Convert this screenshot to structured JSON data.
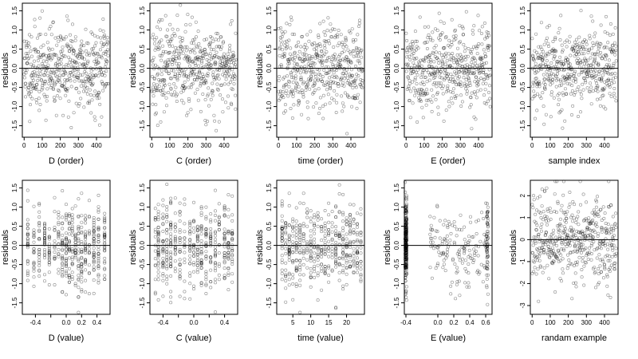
{
  "figure": {
    "description": "Residual diagnostic scatter plots in a 2x5 grid"
  },
  "chart_data": [
    {
      "type": "scatter",
      "xlabel": "D (order)",
      "ylabel": "residuals",
      "xlim": [
        -10,
        475
      ],
      "ylim": [
        -1.8,
        1.7
      ],
      "xticks": [
        0,
        100,
        200,
        300,
        400
      ],
      "xtick_labels": [
        "0",
        "100",
        "200",
        "300",
        "400"
      ],
      "yticks": [
        -1.5,
        -1.0,
        -0.5,
        0.0,
        0.5,
        1.0,
        1.5
      ],
      "ytick_labels": [
        "-1.5",
        "-1.0",
        "-0.5",
        "0.0",
        "0.5",
        "1.0",
        "1.5"
      ],
      "hline": 0,
      "pattern": {
        "kind": "uniform",
        "n": 480,
        "seed": 11,
        "sd": 0.55,
        "xmin": 0,
        "xmax": 465
      }
    },
    {
      "type": "scatter",
      "xlabel": "C (order)",
      "ylabel": "residuals",
      "xlim": [
        -10,
        475
      ],
      "ylim": [
        -1.8,
        1.7
      ],
      "xticks": [
        0,
        100,
        200,
        300,
        400
      ],
      "xtick_labels": [
        "0",
        "100",
        "200",
        "300",
        "400"
      ],
      "yticks": [
        -1.5,
        -1.0,
        -0.5,
        0.0,
        0.5,
        1.0,
        1.5
      ],
      "ytick_labels": [
        "-1.5",
        "-1.0",
        "-0.5",
        "0.0",
        "0.5",
        "1.0",
        "1.5"
      ],
      "hline": 0,
      "pattern": {
        "kind": "uniform",
        "n": 480,
        "seed": 23,
        "sd": 0.55,
        "xmin": 0,
        "xmax": 465
      }
    },
    {
      "type": "scatter",
      "xlabel": "time (order)",
      "ylabel": "residuals",
      "xlim": [
        -10,
        475
      ],
      "ylim": [
        -1.8,
        1.7
      ],
      "xticks": [
        0,
        100,
        200,
        300,
        400
      ],
      "xtick_labels": [
        "0",
        "100",
        "200",
        "300",
        "400"
      ],
      "yticks": [
        -1.5,
        -1.0,
        -0.5,
        0.0,
        0.5,
        1.0,
        1.5
      ],
      "ytick_labels": [
        "-1.5",
        "-1.0",
        "-0.5",
        "0.0",
        "0.5",
        "1.0",
        "1.5"
      ],
      "hline": 0,
      "pattern": {
        "kind": "uniform",
        "n": 480,
        "seed": 37,
        "sd": 0.55,
        "xmin": 0,
        "xmax": 465
      }
    },
    {
      "type": "scatter",
      "xlabel": "E (order)",
      "ylabel": "residuals",
      "xlim": [
        -10,
        475
      ],
      "ylim": [
        -1.8,
        1.7
      ],
      "xticks": [
        0,
        100,
        200,
        300,
        400
      ],
      "xtick_labels": [
        "0",
        "100",
        "200",
        "300",
        "400"
      ],
      "yticks": [
        -1.5,
        -1.0,
        -0.5,
        0.0,
        0.5,
        1.0,
        1.5
      ],
      "ytick_labels": [
        "-1.5",
        "-1.0",
        "-0.5",
        "0.0",
        "0.5",
        "1.0",
        "1.5"
      ],
      "hline": 0,
      "pattern": {
        "kind": "uniform",
        "n": 480,
        "seed": 41,
        "sd": 0.55,
        "xmin": 0,
        "xmax": 465
      }
    },
    {
      "type": "scatter",
      "xlabel": "sample index",
      "ylabel": "residuals",
      "xlim": [
        -10,
        475
      ],
      "ylim": [
        -1.8,
        1.7
      ],
      "xticks": [
        0,
        100,
        200,
        300,
        400
      ],
      "xtick_labels": [
        "0",
        "100",
        "200",
        "300",
        "400"
      ],
      "yticks": [
        -1.5,
        -1.0,
        -0.5,
        0.0,
        0.5,
        1.0,
        1.5
      ],
      "ytick_labels": [
        "-1.5",
        "-1.0",
        "-0.5",
        "0.0",
        "0.5",
        "1.0",
        "1.5"
      ],
      "hline": 0,
      "pattern": {
        "kind": "uniform",
        "n": 480,
        "seed": 53,
        "sd": 0.55,
        "xmin": 0,
        "xmax": 465
      }
    },
    {
      "type": "scatter",
      "xlabel": "D (value)",
      "ylabel": "residuals",
      "xlim": [
        -0.57,
        0.57
      ],
      "ylim": [
        -1.8,
        1.7
      ],
      "xticks": [
        -0.4,
        -0.2,
        0.0,
        0.2,
        0.4
      ],
      "xtick_labels": [
        "-0.4",
        "",
        "0.0",
        "0.2",
        "0.4"
      ],
      "yticks": [
        -1.5,
        -1.0,
        -0.5,
        0.0,
        0.5,
        1.0,
        1.5
      ],
      "ytick_labels": [
        "-1.5",
        "-1.0",
        "-0.5",
        "0.0",
        "0.5",
        "1.0",
        "1.5"
      ],
      "hline": 0,
      "pattern": {
        "kind": "columns",
        "n": 480,
        "seed": 61,
        "sd": 0.55,
        "columns": [
          -0.5,
          -0.42,
          -0.35,
          -0.28,
          -0.22,
          -0.15,
          -0.1,
          -0.05,
          0.0,
          0.04,
          0.08,
          0.12,
          0.16,
          0.2,
          0.25,
          0.3,
          0.36,
          0.42,
          0.5
        ]
      }
    },
    {
      "type": "scatter",
      "xlabel": "C (value)",
      "ylabel": "residuals",
      "xlim": [
        -0.57,
        0.57
      ],
      "ylim": [
        -1.8,
        1.7
      ],
      "xticks": [
        -0.4,
        -0.2,
        0.0,
        0.2,
        0.4
      ],
      "xtick_labels": [
        "-0.4",
        "",
        "0.0",
        "",
        "0.4"
      ],
      "yticks": [
        -1.5,
        -1.0,
        -0.5,
        0.0,
        0.5,
        1.0,
        1.5
      ],
      "ytick_labels": [
        "-1.5",
        "-1.0",
        "-0.5",
        "0.0",
        "0.5",
        "1.0",
        "1.5"
      ],
      "hline": 0,
      "pattern": {
        "kind": "columns",
        "n": 480,
        "seed": 71,
        "sd": 0.55,
        "columns": [
          -0.5,
          -0.46,
          -0.4,
          -0.35,
          -0.3,
          -0.24,
          -0.18,
          -0.12,
          -0.05,
          0.0,
          0.05,
          0.1,
          0.16,
          0.22,
          0.28,
          0.33,
          0.4,
          0.45,
          0.5
        ]
      }
    },
    {
      "type": "scatter",
      "xlabel": "time (value)",
      "ylabel": "residuals",
      "xlim": [
        0.5,
        25
      ],
      "ylim": [
        -1.8,
        1.7
      ],
      "xticks": [
        5,
        10,
        15,
        20
      ],
      "xtick_labels": [
        "5",
        "10",
        "15",
        "20"
      ],
      "yticks": [
        -1.5,
        -1.0,
        -0.5,
        0.0,
        0.5,
        1.0,
        1.5
      ],
      "ytick_labels": [
        "-1.5",
        "-1.0",
        "-0.5",
        "0.0",
        "0.5",
        "1.0",
        "1.5"
      ],
      "hline": 0,
      "pattern": {
        "kind": "columns",
        "n": 480,
        "seed": 83,
        "sd": 0.55,
        "columns": [
          2,
          3,
          4,
          5,
          6,
          7,
          8,
          9,
          10,
          11,
          12,
          13,
          14,
          15,
          16,
          17,
          18,
          19,
          20,
          21,
          22,
          23,
          24
        ]
      }
    },
    {
      "type": "scatter",
      "xlabel": "E (value)",
      "ylabel": "residuals",
      "xlim": [
        -0.42,
        0.68
      ],
      "ylim": [
        -1.8,
        1.7
      ],
      "xticks": [
        -0.4,
        0.0,
        0.2,
        0.4,
        0.6
      ],
      "xtick_labels": [
        "-0.4",
        "0.0",
        "0.2",
        "0.4",
        "0.6"
      ],
      "yticks": [
        -1.5,
        -1.0,
        -0.5,
        0.0,
        0.5,
        1.0,
        1.5
      ],
      "ytick_labels": [
        "-1.5",
        "-1.0",
        "-0.5",
        "0.0",
        "0.5",
        "1.0",
        "1.5"
      ],
      "hline": 0,
      "pattern": {
        "kind": "skewed",
        "n": 480,
        "seed": 97,
        "sd": 0.6,
        "heavy_x": -0.4,
        "heavy_n": 260,
        "right_x": 0.62,
        "right_n": 60
      }
    },
    {
      "type": "scatter",
      "xlabel": "randam example",
      "ylabel": "residuals",
      "xlim": [
        -10,
        475
      ],
      "ylim": [
        -3.4,
        2.7
      ],
      "xticks": [
        0,
        100,
        200,
        300,
        400
      ],
      "xtick_labels": [
        "0",
        "100",
        "200",
        "300",
        "400"
      ],
      "yticks": [
        -3,
        -2,
        -1,
        0,
        1,
        2
      ],
      "ytick_labels": [
        "-3",
        "-2",
        "-1",
        "0",
        "1",
        "2"
      ],
      "hline": 0,
      "pattern": {
        "kind": "uniform",
        "n": 480,
        "seed": 107,
        "sd": 1.0,
        "xmin": 0,
        "xmax": 465
      }
    }
  ]
}
